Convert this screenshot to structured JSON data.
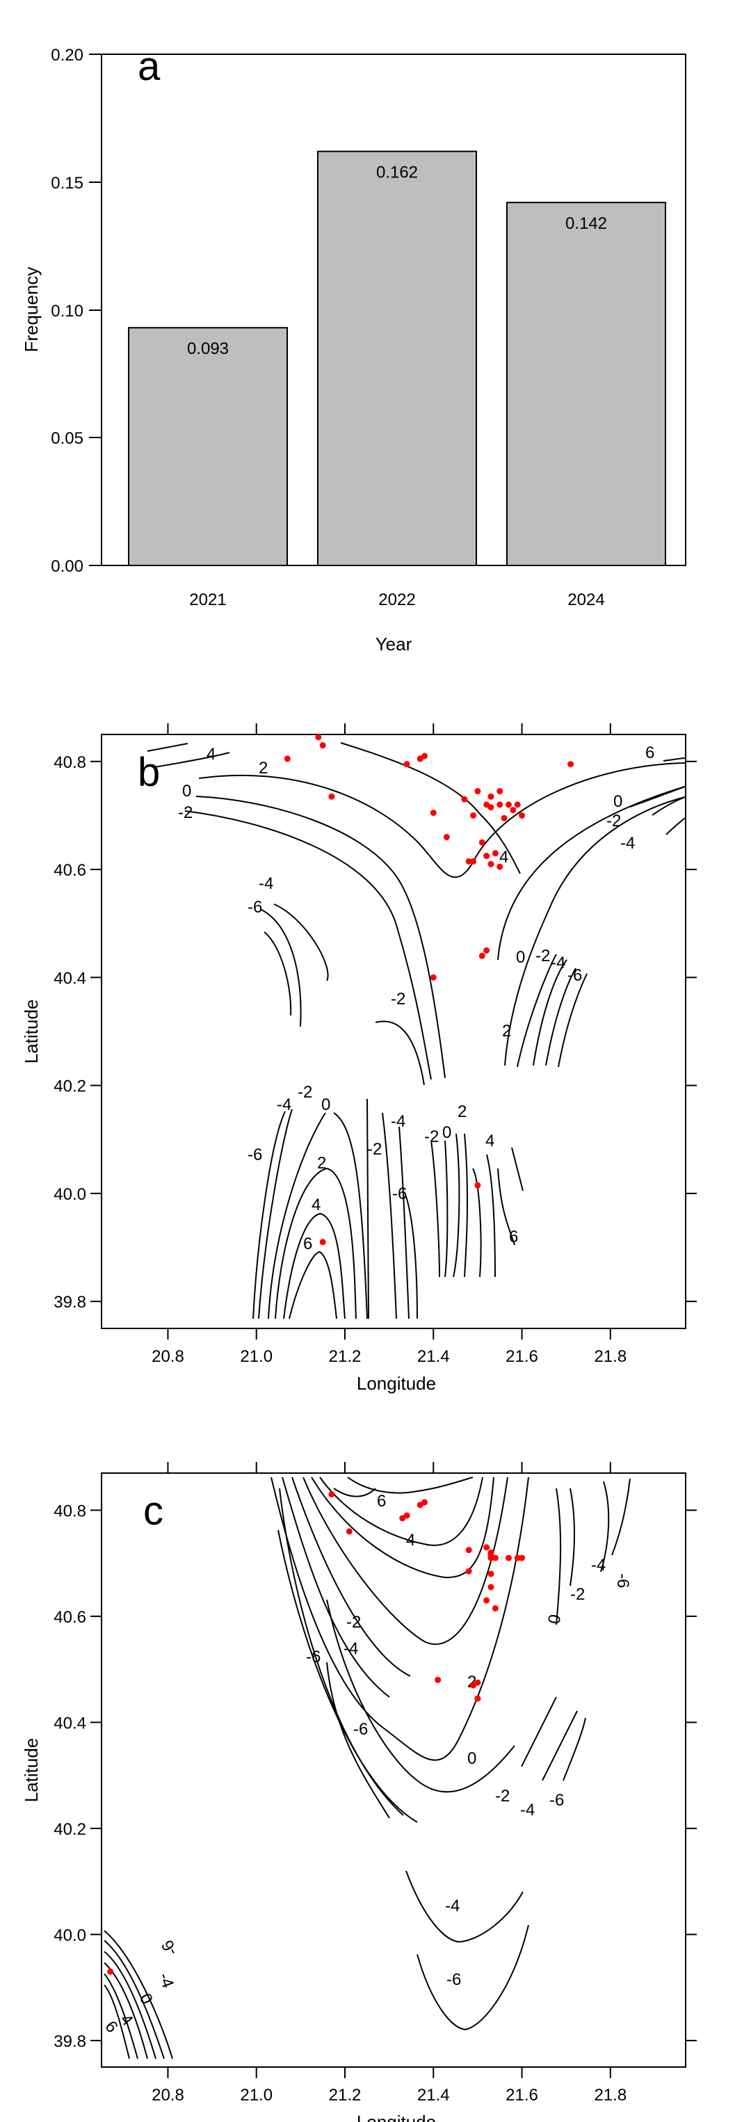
{
  "chart_data": [
    {
      "panel": "a",
      "type": "bar",
      "categories": [
        "2021",
        "2022",
        "2024"
      ],
      "values": [
        0.093,
        0.162,
        0.142
      ],
      "value_labels": [
        "0.093",
        "0.162",
        "0.142"
      ],
      "ylim": [
        0,
        0.2
      ],
      "yticks": [
        "0.00",
        "0.05",
        "0.10",
        "0.15",
        "0.20"
      ],
      "xlabel": "Year",
      "ylabel": "Frequency",
      "bar_color": "#bebebe"
    },
    {
      "panel": "b",
      "type": "contour",
      "xlabel": "Longitude",
      "ylabel": "Latitude",
      "xlim": [
        20.65,
        21.97
      ],
      "ylim": [
        39.75,
        40.85
      ],
      "xticks": [
        "20.8",
        "21.0",
        "21.2",
        "21.4",
        "21.6",
        "21.8"
      ],
      "yticks": [
        "39.8",
        "40.0",
        "40.2",
        "40.4",
        "40.6",
        "40.8"
      ],
      "contour_levels": [
        "4",
        "2",
        "0",
        "-2",
        "6",
        "0",
        "-2",
        "-4",
        "-4",
        "-6",
        "4",
        "-2",
        "0",
        "-2",
        "-4",
        "-6",
        "2",
        "-4",
        "-2",
        "0",
        "-6",
        "2",
        "-2",
        "-4",
        "-2",
        "0",
        "2",
        "4",
        "4",
        "6",
        "-6",
        "6"
      ],
      "point_color": "#ff0000",
      "points": [
        [
          21.07,
          40.805
        ],
        [
          21.14,
          40.845
        ],
        [
          21.15,
          40.83
        ],
        [
          21.17,
          40.735
        ],
        [
          21.34,
          40.795
        ],
        [
          21.37,
          40.805
        ],
        [
          21.38,
          40.81
        ],
        [
          21.4,
          40.705
        ],
        [
          21.43,
          40.66
        ],
        [
          21.47,
          40.73
        ],
        [
          21.5,
          40.745
        ],
        [
          21.52,
          40.72
        ],
        [
          21.53,
          40.735
        ],
        [
          21.55,
          40.745
        ],
        [
          21.53,
          40.715
        ],
        [
          21.55,
          40.72
        ],
        [
          21.57,
          40.72
        ],
        [
          21.58,
          40.71
        ],
        [
          21.59,
          40.72
        ],
        [
          21.6,
          40.7
        ],
        [
          21.56,
          40.695
        ],
        [
          21.49,
          40.7
        ],
        [
          21.51,
          40.65
        ],
        [
          21.52,
          40.625
        ],
        [
          21.54,
          40.63
        ],
        [
          21.53,
          40.61
        ],
        [
          21.49,
          40.615
        ],
        [
          21.48,
          40.615
        ],
        [
          21.55,
          40.605
        ],
        [
          21.52,
          40.45
        ],
        [
          21.51,
          40.44
        ],
        [
          21.4,
          40.4
        ],
        [
          21.71,
          40.795
        ],
        [
          21.5,
          40.015
        ],
        [
          21.15,
          39.91
        ]
      ]
    },
    {
      "panel": "c",
      "type": "contour",
      "xlabel": "Longitude",
      "ylabel": "Latitude",
      "xlim": [
        20.65,
        21.97
      ],
      "ylim": [
        39.75,
        40.87
      ],
      "xticks": [
        "20.8",
        "21.0",
        "21.2",
        "21.4",
        "21.6",
        "21.8"
      ],
      "yticks": [
        "39.8",
        "40.0",
        "40.2",
        "40.4",
        "40.6",
        "40.8"
      ],
      "contour_levels": [
        "6",
        "4",
        "-2",
        "-4",
        "-6",
        "2",
        "-6",
        "0",
        "-2",
        "-4",
        "-6",
        "0",
        "-2",
        "-4",
        "-6",
        "-4",
        "-6",
        "6",
        "4",
        "0",
        "-4",
        "-6"
      ],
      "point_color": "#ff0000",
      "points": [
        [
          21.17,
          40.83
        ],
        [
          21.21,
          40.76
        ],
        [
          21.33,
          40.785
        ],
        [
          21.34,
          40.79
        ],
        [
          21.37,
          40.81
        ],
        [
          21.38,
          40.815
        ],
        [
          21.48,
          40.725
        ],
        [
          21.48,
          40.685
        ],
        [
          21.52,
          40.73
        ],
        [
          21.53,
          40.72
        ],
        [
          21.53,
          40.71
        ],
        [
          21.53,
          40.715
        ],
        [
          21.54,
          40.71
        ],
        [
          21.57,
          40.71
        ],
        [
          21.59,
          40.71
        ],
        [
          21.6,
          40.71
        ],
        [
          21.53,
          40.68
        ],
        [
          21.53,
          40.655
        ],
        [
          21.52,
          40.63
        ],
        [
          21.54,
          40.615
        ],
        [
          21.41,
          40.48
        ],
        [
          21.49,
          40.47
        ],
        [
          21.5,
          40.475
        ],
        [
          21.5,
          40.445
        ],
        [
          20.67,
          39.93
        ]
      ]
    }
  ]
}
